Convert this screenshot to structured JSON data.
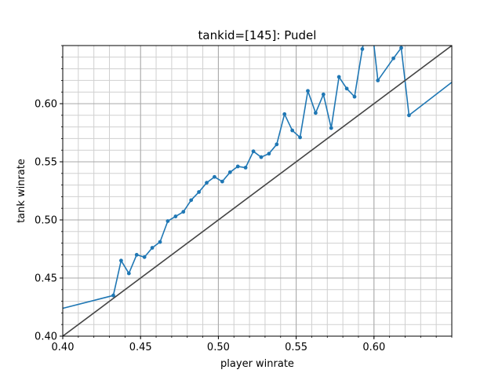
{
  "chart_data": {
    "type": "line",
    "title": "tankid=[145]: Pudel",
    "xlabel": "player winrate",
    "ylabel": "tank winrate",
    "xlim": [
      0.4,
      0.65
    ],
    "ylim": [
      0.4,
      0.65
    ],
    "grid": "major and minor",
    "xticks": [
      0.4,
      0.45,
      0.5,
      0.55,
      0.6
    ],
    "yticks": [
      0.4,
      0.45,
      0.5,
      0.55,
      0.6
    ],
    "xtick_labels": [
      "0.40",
      "0.45",
      "0.50",
      "0.55",
      "0.60"
    ],
    "ytick_labels": [
      "0.40",
      "0.45",
      "0.50",
      "0.55",
      "0.60"
    ],
    "series": [
      {
        "color": "#1f77b4",
        "marker": "dot",
        "x": [
          0.3,
          0.4325,
          0.4375,
          0.4425,
          0.4475,
          0.4525,
          0.4575,
          0.4625,
          0.4675,
          0.4725,
          0.4775,
          0.4825,
          0.4875,
          0.4925,
          0.4975,
          0.5025,
          0.5075,
          0.5125,
          0.5175,
          0.5225,
          0.5275,
          0.5325,
          0.5375,
          0.5425,
          0.5475,
          0.5525,
          0.5575,
          0.5625,
          0.5675,
          0.5725,
          0.5775,
          0.5825,
          0.5875,
          0.5925,
          0.5975,
          0.6025,
          0.6125,
          0.6175,
          0.6225,
          0.7
        ],
        "y": [
          0.39,
          0.435,
          0.465,
          0.454,
          0.47,
          0.468,
          0.476,
          0.481,
          0.499,
          0.503,
          0.507,
          0.517,
          0.524,
          0.532,
          0.537,
          0.533,
          0.541,
          0.546,
          0.545,
          0.559,
          0.554,
          0.557,
          0.565,
          0.591,
          0.577,
          0.571,
          0.611,
          0.592,
          0.608,
          0.579,
          0.623,
          0.613,
          0.606,
          0.647,
          0.68,
          0.62,
          0.639,
          0.648,
          0.59,
          0.67
        ]
      },
      {
        "color": "#444444",
        "marker": "none",
        "x": [
          0.4,
          0.65
        ],
        "y": [
          0.4,
          0.65
        ]
      }
    ]
  }
}
